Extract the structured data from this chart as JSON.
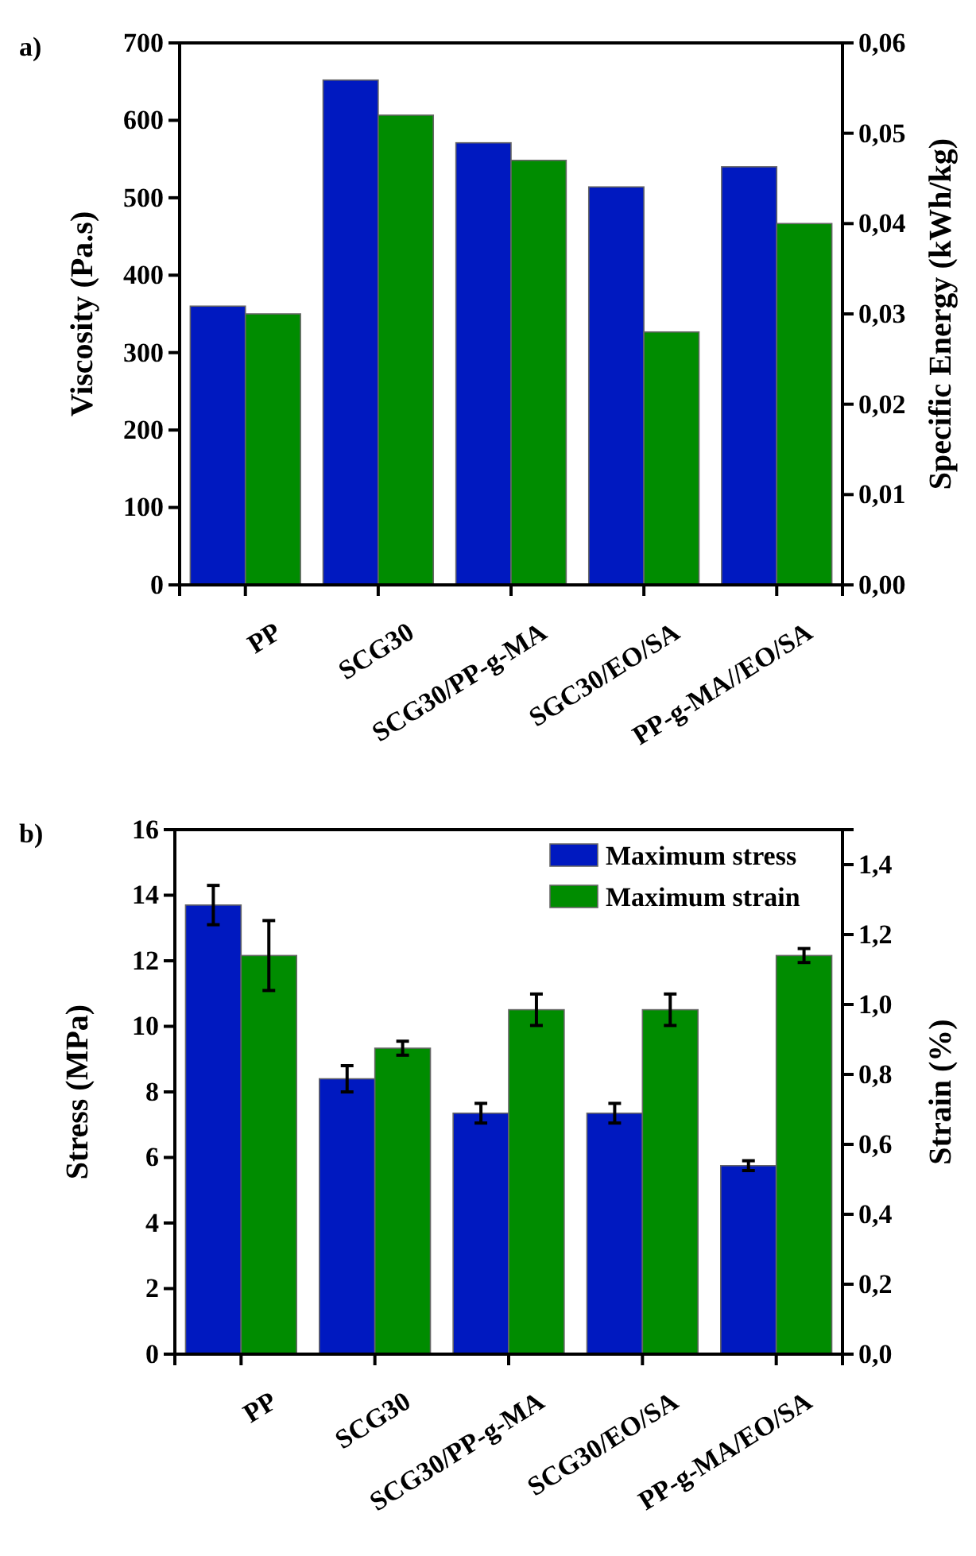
{
  "chart_data": [
    {
      "type": "bar",
      "title": "a)",
      "ylabel": "Viscosity (Pa.s)",
      "y2label": "Specific Energy (kWh/kg)",
      "categories": [
        "PP",
        "SCG30",
        "SCG30/PP-g-MA",
        "SGC30/EO/SA",
        "PP-g-MA//EO/SA"
      ],
      "series": [
        {
          "color": "#0019c0",
          "values": [
            360,
            652,
            571,
            514,
            540
          ]
        },
        {
          "color": "#008c00",
          "axis": "y2",
          "values": [
            0.03,
            0.052,
            0.047,
            0.028,
            0.04
          ]
        }
      ],
      "ylim": [
        0,
        700
      ],
      "yticks": [
        0,
        100,
        200,
        300,
        400,
        500,
        600,
        700
      ],
      "y2lim": [
        0,
        0.06
      ],
      "y2ticks": [
        {
          "value": 0,
          "label": "0,00"
        },
        {
          "value": 0.01,
          "label": "0,01"
        },
        {
          "value": 0.02,
          "label": "0,02"
        },
        {
          "value": 0.03,
          "label": "0,03"
        },
        {
          "value": 0.04,
          "label": "0,04"
        },
        {
          "value": 0.05,
          "label": "0,05"
        },
        {
          "value": 0.06,
          "label": "0,06"
        }
      ],
      "grid": false,
      "legend": false
    },
    {
      "type": "bar",
      "title": "b)",
      "ylabel": "Stress (MPa)",
      "y2label": "Strain (%)",
      "categories": [
        "PP",
        "SCG30",
        "SCG30/PP-g-MA",
        "SCG30/EO/SA",
        "PP-g-MA/EO/SA"
      ],
      "series": [
        {
          "name": "Maximum stress",
          "color": "#0019c0",
          "values": [
            13.7,
            8.4,
            7.35,
            7.35,
            5.75
          ],
          "errors": [
            0.6,
            0.4,
            0.3,
            0.3,
            0.15
          ]
        },
        {
          "name": "Maximum strain",
          "color": "#008c00",
          "axis": "y2",
          "values": [
            1.14,
            0.875,
            0.985,
            0.985,
            1.14
          ],
          "errors": [
            0.1,
            0.02,
            0.045,
            0.045,
            0.02
          ]
        }
      ],
      "ylim": [
        0,
        16
      ],
      "yticks": [
        0,
        2,
        4,
        6,
        8,
        10,
        12,
        14,
        16
      ],
      "y2lim": [
        0,
        1.5
      ],
      "y2ticks": [
        {
          "value": 0,
          "label": "0,0"
        },
        {
          "value": 0.2,
          "label": "0,2"
        },
        {
          "value": 0.4,
          "label": "0,4"
        },
        {
          "value": 0.6,
          "label": "0,6"
        },
        {
          "value": 0.8,
          "label": "0,8"
        },
        {
          "value": 1.0,
          "label": "1,0"
        },
        {
          "value": 1.2,
          "label": "1,2"
        },
        {
          "value": 1.4,
          "label": "1,4"
        }
      ],
      "grid": false,
      "legend": "top right"
    }
  ]
}
